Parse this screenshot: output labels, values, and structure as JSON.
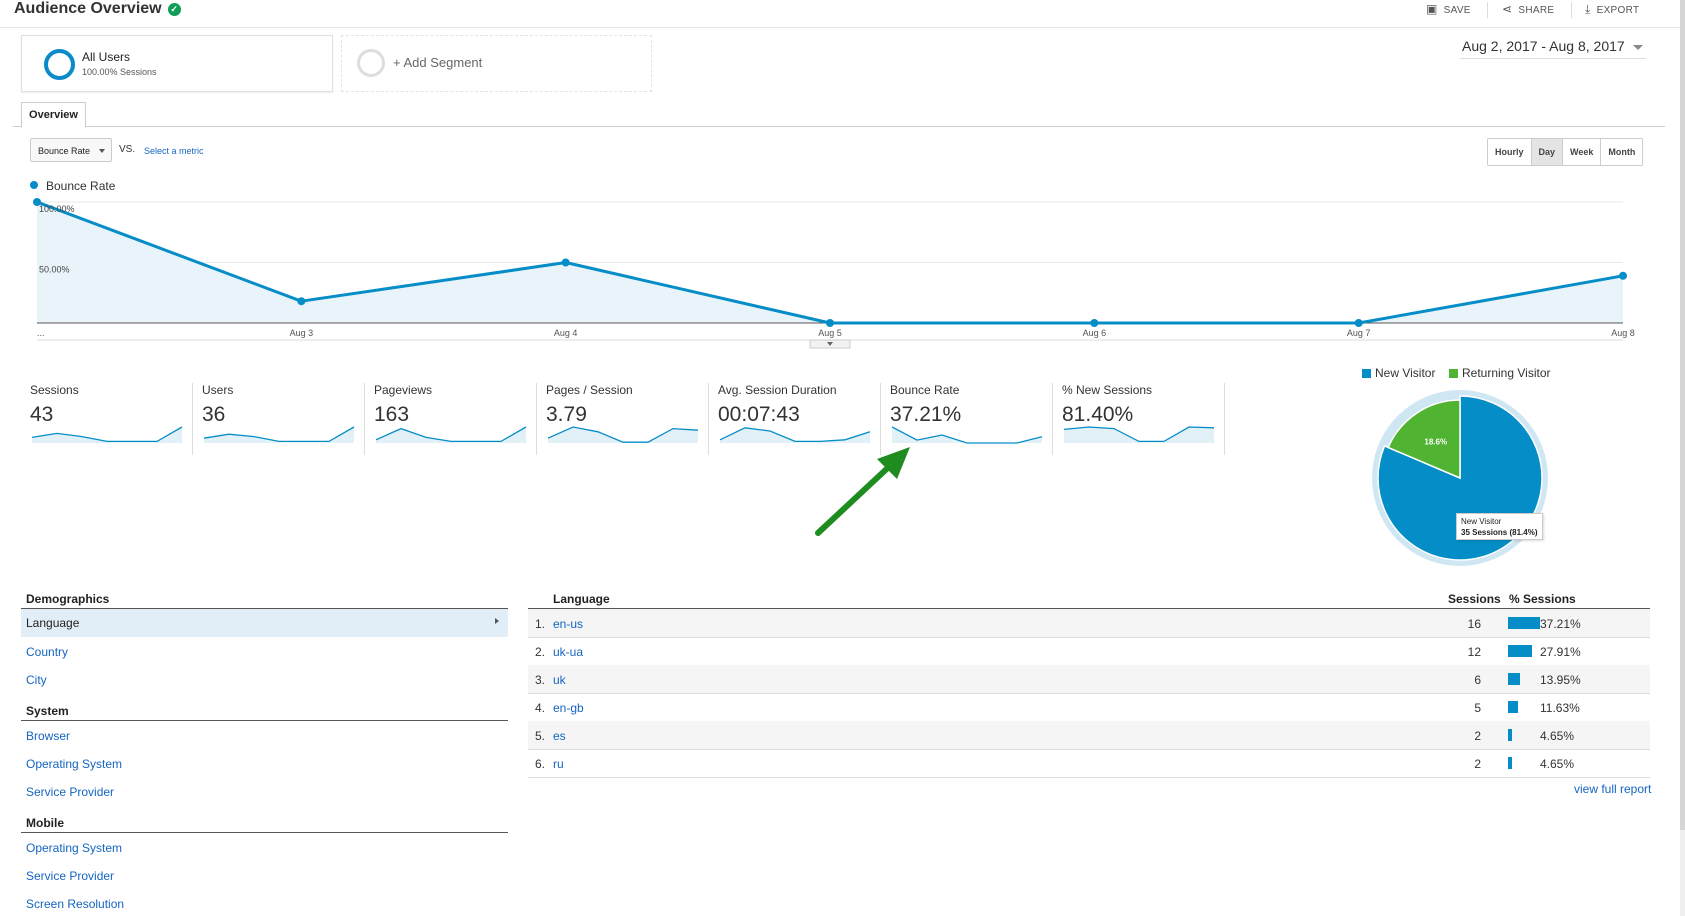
{
  "header": {
    "title": "Audience Overview",
    "save": "SAVE",
    "share": "SHARE",
    "export": "EXPORT"
  },
  "segment": {
    "name": "All Users",
    "sub": "100.00% Sessions",
    "add": "+ Add Segment"
  },
  "date_range": "Aug 2, 2017 - Aug 8, 2017",
  "tab": "Overview",
  "metric_selector": {
    "selected": "Bounce Rate",
    "vs": "VS.",
    "select_metric": "Select a metric"
  },
  "granularity": {
    "options": [
      "Hourly",
      "Day",
      "Week",
      "Month"
    ],
    "selected": "Day"
  },
  "colors": {
    "accent": "#058dc7",
    "link": "#1565c0",
    "pie_new": "#058dc7",
    "pie_returning": "#50b432",
    "arrow": "#1e8c1e"
  },
  "chart_data": {
    "type": "line",
    "series": [
      {
        "name": "Bounce Rate",
        "values": [
          100,
          18,
          50,
          0,
          0,
          0,
          39
        ]
      }
    ],
    "x": [
      "Aug 2",
      "Aug 3",
      "Aug 4",
      "Aug 5",
      "Aug 6",
      "Aug 7",
      "Aug 8"
    ],
    "x_tick_labels": [
      "...",
      "Aug 3",
      "Aug 4",
      "Aug 5",
      "Aug 6",
      "Aug 7",
      "Aug 8"
    ],
    "y_ticks": [
      "100.00%",
      "50.00%"
    ],
    "ylim": [
      0,
      100
    ],
    "grid": true,
    "legend": "top-left",
    "area": true
  },
  "metrics": [
    {
      "label": "Sessions",
      "value": "43",
      "spark": [
        0.35,
        0.6,
        0.4,
        0.1,
        0.1,
        0.1,
        1.0
      ]
    },
    {
      "label": "Users",
      "value": "36",
      "spark": [
        0.3,
        0.55,
        0.4,
        0.1,
        0.1,
        0.1,
        1.0
      ]
    },
    {
      "label": "Pageviews",
      "value": "163",
      "spark": [
        0.2,
        0.9,
        0.35,
        0.1,
        0.1,
        0.1,
        1.0
      ]
    },
    {
      "label": "Pages / Session",
      "value": "3.79",
      "spark": [
        0.3,
        1.0,
        0.7,
        0.05,
        0.05,
        0.9,
        0.8
      ]
    },
    {
      "label": "Avg. Session Duration",
      "value": "00:07:43",
      "spark": [
        0.2,
        0.95,
        0.75,
        0.1,
        0.1,
        0.2,
        0.7
      ]
    },
    {
      "label": "Bounce Rate",
      "value": "37.21%",
      "spark": [
        1.0,
        0.18,
        0.5,
        0.0,
        0.0,
        0.0,
        0.39
      ]
    },
    {
      "label": "% New Sessions",
      "value": "81.40%",
      "spark": [
        0.85,
        1.0,
        0.9,
        0.1,
        0.1,
        1.0,
        0.95
      ]
    }
  ],
  "pie": {
    "legend": [
      "New Visitor",
      "Returning Visitor"
    ],
    "values": [
      81.4,
      18.6
    ],
    "label": "18.6%",
    "tooltip": {
      "line1": "New Visitor",
      "line2": "35 Sessions (81.4%)"
    }
  },
  "nav": {
    "demographics": {
      "title": "Demographics",
      "items": [
        "Language",
        "Country",
        "City"
      ],
      "active": "Language"
    },
    "system": {
      "title": "System",
      "items": [
        "Browser",
        "Operating System",
        "Service Provider"
      ]
    },
    "mobile": {
      "title": "Mobile",
      "items": [
        "Operating System",
        "Service Provider",
        "Screen Resolution"
      ]
    }
  },
  "table": {
    "headers": {
      "language": "Language",
      "sessions": "Sessions",
      "pct": "% Sessions"
    },
    "rows": [
      {
        "n": "1.",
        "lang": "en-us",
        "sessions": "16",
        "pct": "37.21%",
        "frac": 0.3721
      },
      {
        "n": "2.",
        "lang": "uk-ua",
        "sessions": "12",
        "pct": "27.91%",
        "frac": 0.2791
      },
      {
        "n": "3.",
        "lang": "uk",
        "sessions": "6",
        "pct": "13.95%",
        "frac": 0.1395
      },
      {
        "n": "4.",
        "lang": "en-gb",
        "sessions": "5",
        "pct": "11.63%",
        "frac": 0.1163
      },
      {
        "n": "5.",
        "lang": "es",
        "sessions": "2",
        "pct": "4.65%",
        "frac": 0.0465
      },
      {
        "n": "6.",
        "lang": "ru",
        "sessions": "2",
        "pct": "4.65%",
        "frac": 0.0465
      }
    ],
    "view_full": "view full report"
  }
}
